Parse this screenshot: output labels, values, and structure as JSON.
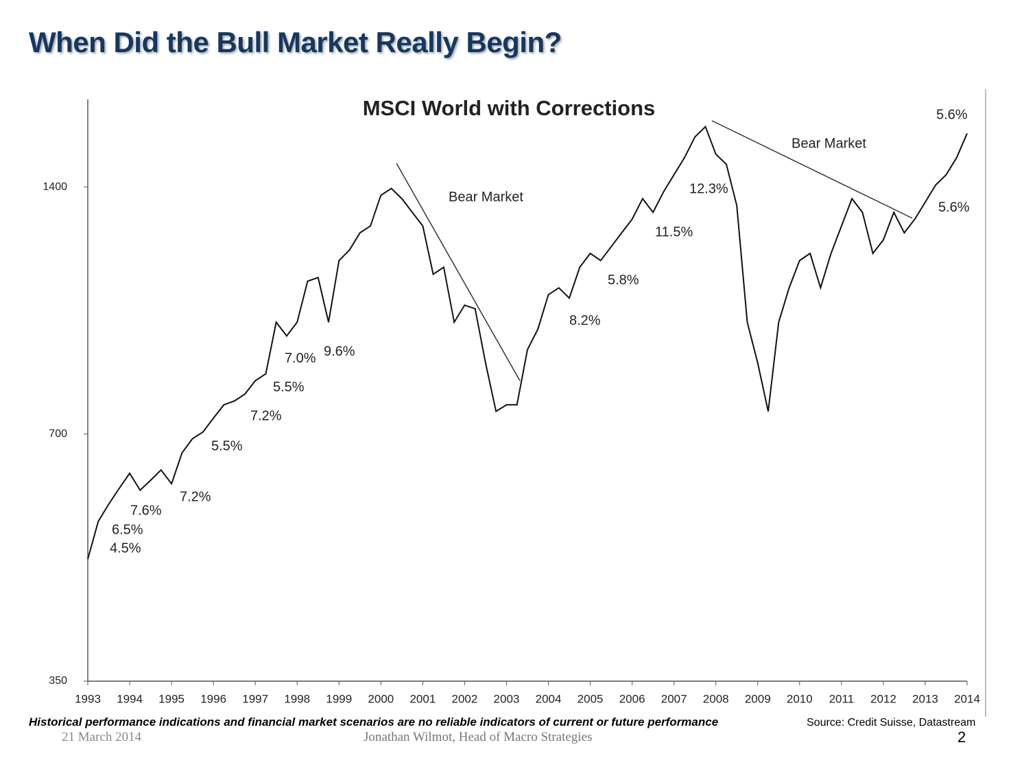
{
  "slide": {
    "title": "When Did the Bull Market Really Begin?",
    "disclaimer": "Historical performance indications and financial market scenarios are no reliable indicators of current or future performance",
    "date": "21 March 2014",
    "author": "Jonathan Wilmot, Head of Macro Strategies",
    "source": "Source: Credit Suisse, Datastream",
    "page_number": "2"
  },
  "chart_data": {
    "type": "line",
    "title": "MSCI World with Corrections",
    "log_scale": true,
    "x": [
      1993.0,
      1993.25,
      1993.5,
      1993.75,
      1994.0,
      1994.25,
      1994.5,
      1994.75,
      1995.0,
      1995.25,
      1995.5,
      1995.75,
      1996.0,
      1996.25,
      1996.5,
      1996.75,
      1997.0,
      1997.25,
      1997.5,
      1997.75,
      1998.0,
      1998.25,
      1998.5,
      1998.75,
      1999.0,
      1999.25,
      1999.5,
      1999.75,
      2000.0,
      2000.25,
      2000.5,
      2000.75,
      2001.0,
      2001.25,
      2001.5,
      2001.75,
      2002.0,
      2002.25,
      2002.5,
      2002.75,
      2003.0,
      2003.25,
      2003.5,
      2003.75,
      2004.0,
      2004.25,
      2004.5,
      2004.75,
      2005.0,
      2005.25,
      2005.5,
      2005.75,
      2006.0,
      2006.25,
      2006.5,
      2006.75,
      2007.0,
      2007.25,
      2007.5,
      2007.75,
      2008.0,
      2008.25,
      2008.5,
      2008.75,
      2009.0,
      2009.25,
      2009.5,
      2009.75,
      2010.0,
      2010.25,
      2010.5,
      2010.75,
      2011.0,
      2011.25,
      2011.5,
      2011.75,
      2012.0,
      2012.25,
      2012.5,
      2012.75,
      2013.0,
      2013.25,
      2013.5,
      2013.75,
      2014.0
    ],
    "series": [
      {
        "name": "MSCI World",
        "color": "#111111",
        "values": [
          493,
          548,
          575,
          601,
          627,
          598,
          615,
          633,
          609,
          664,
          691,
          704,
          732,
          760,
          768,
          783,
          813,
          829,
          958,
          922,
          958,
          1075,
          1086,
          958,
          1139,
          1173,
          1231,
          1255,
          1368,
          1394,
          1355,
          1304,
          1255,
          1096,
          1118,
          958,
          1005,
          995,
          854,
          746,
          760,
          760,
          887,
          940,
          1035,
          1055,
          1025,
          1118,
          1162,
          1139,
          1184,
          1231,
          1279,
          1355,
          1304,
          1381,
          1449,
          1520,
          1611,
          1658,
          1535,
          1492,
          1329,
          958,
          854,
          746,
          958,
          1055,
          1139,
          1162,
          1055,
          1162,
          1255,
          1355,
          1304,
          1162,
          1207,
          1304,
          1231,
          1279,
          1342,
          1408,
          1449,
          1520,
          1627
        ]
      }
    ],
    "xlim": [
      1993,
      2014
    ],
    "xticks": [
      1993,
      1994,
      1995,
      1996,
      1997,
      1998,
      1999,
      2000,
      2001,
      2002,
      2003,
      2004,
      2005,
      2006,
      2007,
      2008,
      2009,
      2010,
      2011,
      2012,
      2013,
      2014
    ],
    "ylim": [
      350,
      1800
    ],
    "yticks": [
      350,
      700,
      1400
    ],
    "annotations": [
      "4.5%",
      "6.5%",
      "7.6%",
      "7.2%",
      "5.5%",
      "7.2%",
      "5.5%",
      "7.0%",
      "9.6%",
      "Bear Market",
      "8.2%",
      "5.8%",
      "11.5%",
      "12.3%",
      "Bear Market",
      "5.6%",
      "5.6%"
    ]
  }
}
